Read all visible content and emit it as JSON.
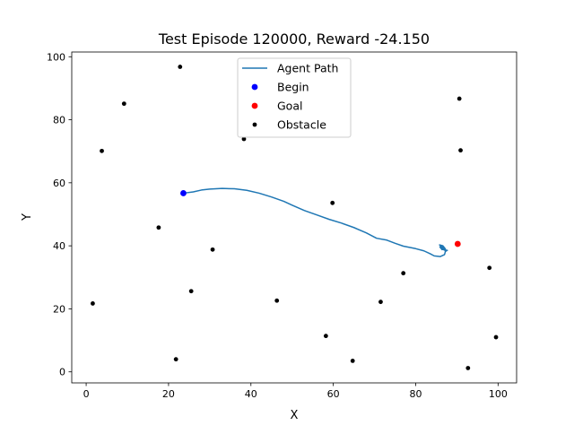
{
  "chart_data": {
    "type": "scatter",
    "title": "Test Episode 120000, Reward -24.150",
    "xlabel": "X",
    "ylabel": "Y",
    "xlim": [
      -3.5,
      104.5
    ],
    "ylim": [
      -3.5,
      101.5
    ],
    "xticks": [
      0,
      20,
      40,
      60,
      80,
      100
    ],
    "yticks": [
      0,
      20,
      40,
      60,
      80,
      100
    ],
    "grid": false,
    "legend_position": "top-center",
    "series": [
      {
        "name": "Agent Path",
        "kind": "line",
        "color": "#1f77b4",
        "points": [
          [
            23.6,
            56.7
          ],
          [
            26.0,
            57.1
          ],
          [
            28.0,
            57.7
          ],
          [
            30.0,
            58.0
          ],
          [
            33.0,
            58.2
          ],
          [
            36.0,
            58.1
          ],
          [
            39.0,
            57.6
          ],
          [
            42.0,
            56.7
          ],
          [
            45.0,
            55.5
          ],
          [
            48.0,
            54.1
          ],
          [
            50.0,
            52.9
          ],
          [
            53.0,
            51.2
          ],
          [
            56.0,
            49.8
          ],
          [
            59.0,
            48.4
          ],
          [
            62.0,
            47.2
          ],
          [
            65.0,
            45.8
          ],
          [
            68.0,
            44.1
          ],
          [
            70.5,
            42.4
          ],
          [
            73.0,
            41.8
          ],
          [
            75.0,
            40.8
          ],
          [
            77.0,
            39.9
          ],
          [
            80.0,
            39.1
          ],
          [
            82.0,
            38.4
          ],
          [
            83.5,
            37.5
          ],
          [
            84.5,
            36.8
          ],
          [
            86.0,
            36.6
          ],
          [
            87.0,
            37.2
          ],
          [
            87.3,
            38.6
          ],
          [
            86.3,
            39.6
          ],
          [
            85.8,
            40.3
          ],
          [
            86.6,
            40.0
          ],
          [
            87.2,
            39.0
          ],
          [
            86.4,
            38.8
          ],
          [
            85.9,
            39.6
          ],
          [
            86.8,
            39.7
          ],
          [
            87.4,
            38.5
          ],
          [
            86.5,
            38.9
          ],
          [
            86.0,
            39.8
          ],
          [
            86.9,
            39.4
          ],
          [
            87.2,
            38.2
          ],
          [
            87.8,
            38.7
          ]
        ]
      },
      {
        "name": "Begin",
        "kind": "points",
        "color": "#0000ff",
        "points": [
          [
            23.6,
            56.7
          ]
        ]
      },
      {
        "name": "Goal",
        "kind": "points",
        "color": "#ff0000",
        "points": [
          [
            90.2,
            40.6
          ]
        ]
      },
      {
        "name": "Obstacle",
        "kind": "points",
        "color": "#000000",
        "points": [
          [
            22.8,
            96.8
          ],
          [
            9.2,
            85.1
          ],
          [
            90.6,
            86.7
          ],
          [
            3.8,
            70.1
          ],
          [
            38.3,
            73.9
          ],
          [
            90.9,
            70.3
          ],
          [
            59.8,
            53.6
          ],
          [
            17.6,
            45.8
          ],
          [
            30.7,
            38.8
          ],
          [
            77.0,
            31.3
          ],
          [
            97.9,
            33.0
          ],
          [
            25.5,
            25.6
          ],
          [
            46.3,
            22.6
          ],
          [
            71.5,
            22.2
          ],
          [
            1.6,
            21.7
          ],
          [
            58.2,
            11.4
          ],
          [
            99.5,
            11.0
          ],
          [
            21.8,
            4.0
          ],
          [
            64.7,
            3.5
          ],
          [
            92.7,
            1.2
          ]
        ]
      }
    ]
  }
}
